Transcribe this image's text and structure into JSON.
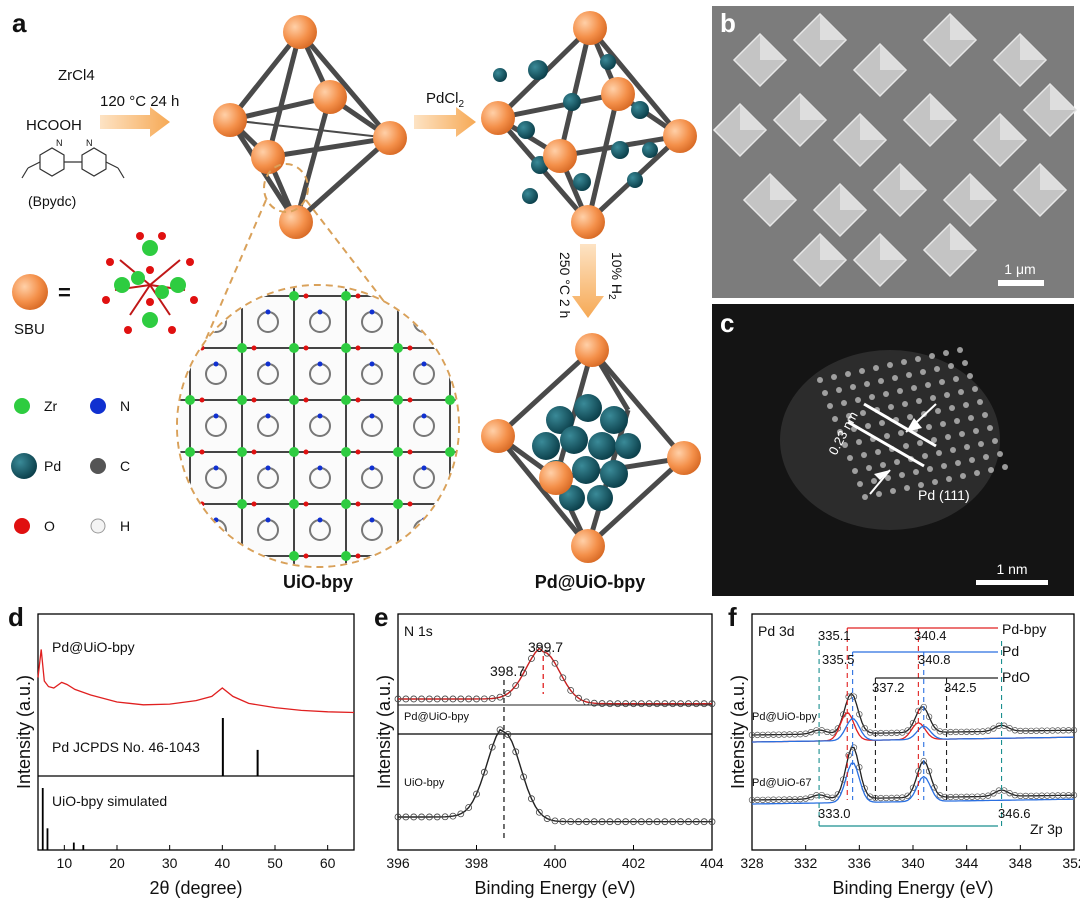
{
  "panels": {
    "a": "a",
    "b": "b",
    "c": "c",
    "d": "d",
    "e": "e",
    "f": "f"
  },
  "panel_a": {
    "reagents": [
      "ZrCl4",
      "HCOOH"
    ],
    "conditions_1": "120 °C  24 h",
    "linker_label": "(Bpydc)",
    "reagent_2": "PdCl",
    "reagent_2_sub": "2",
    "conditions_2a": "250 °C 2 h",
    "conditions_2b": "10% H",
    "conditions_2b_sub": "2",
    "sbu_label": "SBU",
    "equals": "=",
    "legend": [
      {
        "label": "Zr",
        "color": "#2ecc40"
      },
      {
        "label": "N",
        "color": "#1030d0"
      },
      {
        "label": "Pd",
        "color": "#0d5260"
      },
      {
        "label": "C",
        "color": "#555555"
      },
      {
        "label": "O",
        "color": "#e01010"
      },
      {
        "label": "H",
        "color": "#eeeeee"
      }
    ],
    "name_1": "UiO-bpy",
    "name_2": "Pd@UiO-bpy",
    "node_color": "#f4a060",
    "pd_color": "#0d5260",
    "arrow_color": "#f6a955"
  },
  "panel_b": {
    "scale": "1 μm"
  },
  "panel_c": {
    "d_spacing": "0.23 nm",
    "plane": "Pd (111)",
    "scale": "1 nm"
  },
  "chart_data": [
    {
      "panel": "d",
      "type": "line",
      "xlabel": "2θ (degree)",
      "ylabel": "Intensity (a.u.)",
      "xlim": [
        5,
        65
      ],
      "x_ticks": [
        10,
        20,
        30,
        40,
        50,
        60
      ],
      "series": [
        {
          "name": "Pd@UiO-bpy",
          "color": "#e02020",
          "x": [
            5,
            5.6,
            6.2,
            7,
            8,
            9.5,
            10.5,
            12,
            15,
            20,
            25,
            30,
            35,
            38,
            40,
            42,
            45,
            50,
            55,
            60,
            65
          ],
          "y": [
            0.55,
            0.95,
            0.5,
            0.42,
            0.4,
            0.48,
            0.45,
            0.38,
            0.3,
            0.2,
            0.16,
            0.17,
            0.22,
            0.28,
            0.4,
            0.28,
            0.18,
            0.12,
            0.08,
            0.06,
            0.05
          ]
        },
        {
          "name": "Pd JCPDS No. 46-1043",
          "type": "stick",
          "color": "#000000",
          "x": [
            40.1,
            46.7
          ],
          "y": [
            1.0,
            0.45
          ]
        },
        {
          "name": "UiO-bpy simulated",
          "type": "stick",
          "color": "#000000",
          "x": [
            5.9,
            6.8,
            11.8,
            13.6
          ],
          "y": [
            1.0,
            0.35,
            0.12,
            0.08
          ]
        }
      ]
    },
    {
      "panel": "e",
      "type": "line",
      "title": "N 1s",
      "xlabel": "Binding Energy (eV)",
      "ylabel": "Intensity (a.u.)",
      "xlim": [
        396,
        404
      ],
      "x_ticks": [
        396,
        398,
        400,
        402,
        404
      ],
      "annotations": [
        "398.7",
        "399.7"
      ],
      "series": [
        {
          "name": "Pd@UiO-bpy",
          "color": "#c81e1e",
          "center": 399.7,
          "height": 0.22,
          "base": 0.62
        },
        {
          "name": "UiO-bpy",
          "color": "#222222",
          "center": 398.7,
          "height": 0.38,
          "base": 0.12
        }
      ]
    },
    {
      "panel": "f",
      "type": "line",
      "title": "Pd 3d",
      "xlabel": "Binding Energy (eV)",
      "ylabel": "Intensity (a.u.)",
      "xlim": [
        328,
        352
      ],
      "x_ticks": [
        328,
        332,
        336,
        340,
        344,
        348,
        352
      ],
      "references": [
        {
          "name": "Pd-bpy",
          "values": [
            "335.1",
            "340.4"
          ],
          "color": "#e02020"
        },
        {
          "name": "Pd",
          "values": [
            "335.5",
            "340.8"
          ],
          "color": "#2a6fe0"
        },
        {
          "name": "PdO",
          "values": [
            "337.2",
            "342.5"
          ],
          "color": "#222222"
        },
        {
          "name": "Zr 3p",
          "values": [
            "333.0",
            "346.6"
          ],
          "color": "#1a8f8f"
        }
      ],
      "series": [
        {
          "name": "Pd@UiO-bpy",
          "color": "#222222"
        },
        {
          "name": "Pd@UiO-67",
          "color": "#222222"
        }
      ]
    }
  ]
}
